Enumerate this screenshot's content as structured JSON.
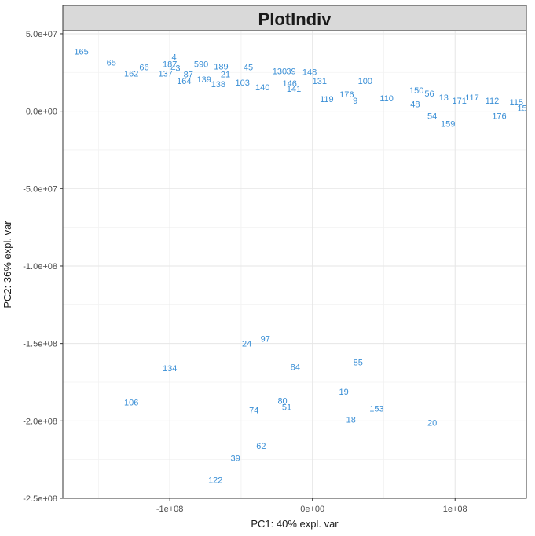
{
  "chart_data": {
    "type": "scatter",
    "title": "PlotIndiv",
    "xlabel": "PC1: 40% expl. var",
    "ylabel": "PC2: 36% expl. var",
    "xlim": [
      -175000000,
      150000000
    ],
    "ylim": [
      -250000000,
      52000000
    ],
    "x_ticks": [
      -100000000,
      0,
      100000000
    ],
    "x_tick_labels": [
      "-1e+08",
      "0e+00",
      "1e+08"
    ],
    "y_ticks": [
      50000000,
      0,
      -50000000,
      -100000000,
      -150000000,
      -200000000,
      -250000000
    ],
    "y_tick_labels": [
      "5.0e+07",
      "0.0e+00",
      "-5.0e+07",
      "-1.0e+08",
      "-1.5e+08",
      "-2.0e+08",
      "-2.5e+08"
    ],
    "grid": true,
    "legend": "none",
    "point_color": "#3a8fd6",
    "points": [
      {
        "label": "165",
        "x": -162000000,
        "y": 38500000
      },
      {
        "label": "65",
        "x": -141000000,
        "y": 31500000
      },
      {
        "label": "162",
        "x": -127000000,
        "y": 24500000
      },
      {
        "label": "66",
        "x": -118000000,
        "y": 28500000
      },
      {
        "label": "137",
        "x": -103000000,
        "y": 24500000
      },
      {
        "label": "4",
        "x": -97000000,
        "y": 35000000
      },
      {
        "label": "187",
        "x": -100000000,
        "y": 30500000
      },
      {
        "label": "43",
        "x": -96000000,
        "y": 28000000
      },
      {
        "label": "164",
        "x": -90000000,
        "y": 19500000
      },
      {
        "label": "87",
        "x": -87000000,
        "y": 24000000
      },
      {
        "label": "139",
        "x": -76000000,
        "y": 20500000
      },
      {
        "label": "590",
        "x": -78000000,
        "y": 30500000
      },
      {
        "label": "138",
        "x": -66000000,
        "y": 17500000
      },
      {
        "label": "189",
        "x": -64000000,
        "y": 29000000
      },
      {
        "label": "21",
        "x": -61000000,
        "y": 24000000
      },
      {
        "label": "103",
        "x": -49000000,
        "y": 18500000
      },
      {
        "label": "45",
        "x": -45000000,
        "y": 28500000
      },
      {
        "label": "140",
        "x": -35000000,
        "y": 15500000
      },
      {
        "label": "130",
        "x": -23000000,
        "y": 26000000
      },
      {
        "label": "39",
        "x": -15000000,
        "y": 26000000
      },
      {
        "label": "146",
        "x": -16000000,
        "y": 18000000
      },
      {
        "label": "141",
        "x": -13000000,
        "y": 14500000
      },
      {
        "label": "148",
        "x": -2000000,
        "y": 25500000
      },
      {
        "label": "131",
        "x": 5000000,
        "y": 19500000
      },
      {
        "label": "119",
        "x": 10000000,
        "y": 8000000
      },
      {
        "label": "176",
        "x": 24000000,
        "y": 11000000
      },
      {
        "label": "100",
        "x": 37000000,
        "y": 19500000
      },
      {
        "label": "9",
        "x": 30000000,
        "y": 7000000
      },
      {
        "label": "110",
        "x": 52000000,
        "y": 8500000
      },
      {
        "label": "150",
        "x": 73000000,
        "y": 13500000
      },
      {
        "label": "56",
        "x": 82000000,
        "y": 11500000
      },
      {
        "label": "48",
        "x": 72000000,
        "y": 4500000
      },
      {
        "label": "54",
        "x": 84000000,
        "y": -3000000
      },
      {
        "label": "159",
        "x": 95000000,
        "y": -8000000
      },
      {
        "label": "13",
        "x": 92000000,
        "y": 9000000
      },
      {
        "label": "171",
        "x": 103000000,
        "y": 7000000
      },
      {
        "label": "117",
        "x": 112000000,
        "y": 9000000
      },
      {
        "label": "112",
        "x": 126000000,
        "y": 7000000
      },
      {
        "label": "176",
        "x": 131000000,
        "y": -3000000
      },
      {
        "label": "115",
        "x": 143000000,
        "y": 6000000
      },
      {
        "label": "15",
        "x": 147000000,
        "y": 2000000
      },
      {
        "label": "97",
        "x": -33000000,
        "y": -147000000
      },
      {
        "label": "24",
        "x": -46000000,
        "y": -150000000
      },
      {
        "label": "134",
        "x": -100000000,
        "y": -166000000
      },
      {
        "label": "84",
        "x": -12000000,
        "y": -165000000
      },
      {
        "label": "85",
        "x": 32000000,
        "y": -162000000
      },
      {
        "label": "19",
        "x": 22000000,
        "y": -181000000
      },
      {
        "label": "106",
        "x": -127000000,
        "y": -188000000
      },
      {
        "label": "80",
        "x": -21000000,
        "y": -187000000
      },
      {
        "label": "51",
        "x": -18000000,
        "y": -191000000
      },
      {
        "label": "74",
        "x": -41000000,
        "y": -193000000
      },
      {
        "label": "153",
        "x": 45000000,
        "y": -192000000
      },
      {
        "label": "18",
        "x": 27000000,
        "y": -199000000
      },
      {
        "label": "20",
        "x": 84000000,
        "y": -201000000
      },
      {
        "label": "62",
        "x": -36000000,
        "y": -216000000
      },
      {
        "label": "39",
        "x": -54000000,
        "y": -224000000
      },
      {
        "label": "122",
        "x": -68000000,
        "y": -238000000
      }
    ]
  }
}
